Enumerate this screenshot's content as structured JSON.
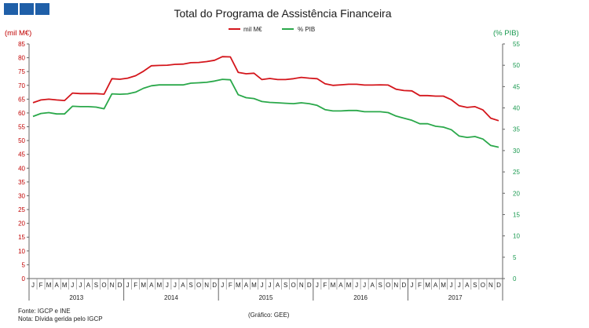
{
  "chart_data": {
    "type": "line",
    "title": "Total do Programa de Assistência Financeira",
    "ylabel_left": "(mil M€)",
    "ylabel_right": "(% PIB)",
    "ylim_left": [
      0,
      85
    ],
    "ylim_right": [
      0,
      55
    ],
    "yticks_left": [
      0,
      5,
      10,
      15,
      20,
      25,
      30,
      35,
      40,
      45,
      50,
      55,
      60,
      65,
      70,
      75,
      80,
      85
    ],
    "yticks_right": [
      0,
      5,
      10,
      15,
      20,
      25,
      30,
      35,
      40,
      45,
      50,
      55
    ],
    "grid": false,
    "legend_position": "top-center",
    "month_labels": [
      "J",
      "F",
      "M",
      "A",
      "M",
      "J",
      "J",
      "A",
      "S",
      "O",
      "N",
      "D",
      "J",
      "F",
      "M",
      "A",
      "M",
      "J",
      "J",
      "A",
      "S",
      "O",
      "N",
      "D",
      "J",
      "F",
      "M",
      "A",
      "M",
      "J",
      "J",
      "A",
      "S",
      "O",
      "N",
      "D",
      "J",
      "F",
      "M",
      "A",
      "M",
      "J",
      "J",
      "A",
      "S",
      "O",
      "N",
      "D",
      "J",
      "F",
      "M",
      "A",
      "M",
      "J",
      "J",
      "A",
      "S",
      "O",
      "N",
      "D"
    ],
    "years": [
      "2013",
      "2014",
      "2015",
      "2016",
      "2017"
    ],
    "series": [
      {
        "name": "mil M€",
        "axis": "left",
        "color": "#d4161c",
        "values": [
          63.7,
          64.7,
          65.0,
          64.7,
          64.5,
          67.2,
          67.0,
          67.0,
          67.0,
          66.8,
          72.4,
          72.2,
          72.6,
          73.5,
          75.1,
          77.1,
          77.2,
          77.3,
          77.6,
          77.7,
          78.2,
          78.3,
          78.6,
          79.1,
          80.4,
          80.3,
          74.7,
          74.2,
          74.4,
          72.1,
          72.5,
          72.1,
          72.1,
          72.4,
          72.9,
          72.6,
          72.4,
          70.6,
          70.0,
          70.2,
          70.4,
          70.4,
          70.1,
          70.1,
          70.2,
          70.1,
          68.6,
          68.1,
          68.0,
          66.3,
          66.3,
          66.1,
          66.1,
          64.8,
          62.6,
          62.0,
          62.3,
          61.1,
          58.1,
          57.2
        ]
      },
      {
        "name": "% PIB",
        "axis": "right",
        "color": "#2aa84a",
        "values": [
          38.0,
          38.7,
          38.9,
          38.6,
          38.6,
          40.4,
          40.3,
          40.3,
          40.2,
          39.8,
          43.3,
          43.2,
          43.3,
          43.7,
          44.6,
          45.2,
          45.4,
          45.4,
          45.4,
          45.4,
          45.8,
          45.9,
          46.0,
          46.3,
          46.7,
          46.6,
          43.1,
          42.4,
          42.2,
          41.5,
          41.3,
          41.2,
          41.1,
          41.0,
          41.2,
          41.0,
          40.6,
          39.6,
          39.3,
          39.3,
          39.4,
          39.4,
          39.1,
          39.1,
          39.1,
          38.9,
          38.1,
          37.6,
          37.1,
          36.3,
          36.3,
          35.7,
          35.5,
          34.9,
          33.4,
          33.1,
          33.3,
          32.7,
          31.2,
          30.8
        ]
      }
    ]
  },
  "footer": {
    "source": "Fonte: IGCP e INE",
    "note": "Nota: Dívida gerida pelo IGCP",
    "credit": "(Gráfico: GEE)"
  },
  "logo": {
    "color": "#1f5fa8",
    "blocks": 3
  }
}
